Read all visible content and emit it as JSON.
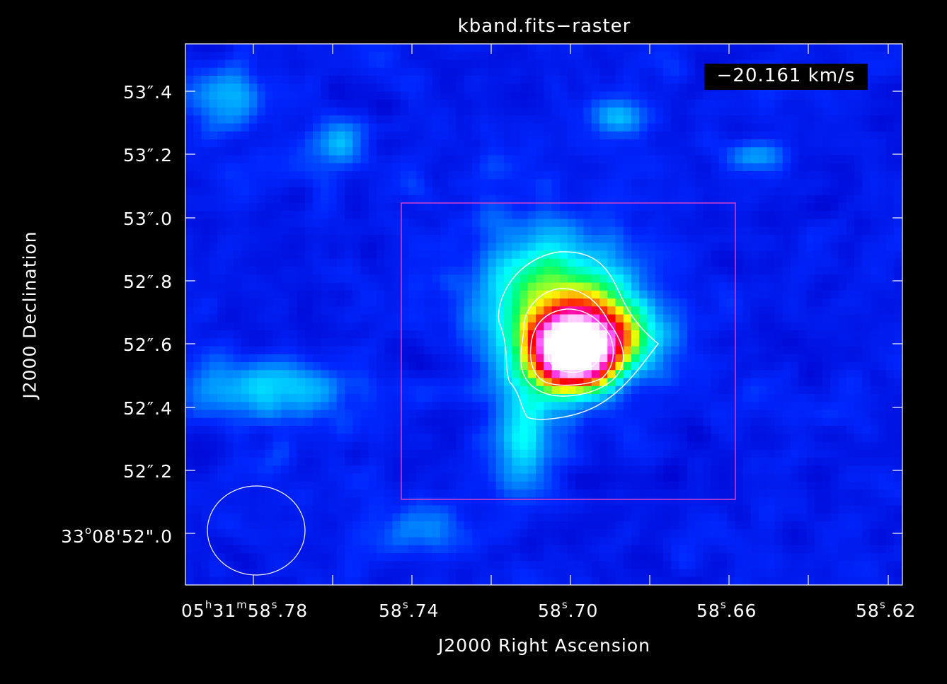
{
  "plot": {
    "title": "kband.fits−raster",
    "velocity_label": "−20.161 km/s",
    "x_axis_label": "J2000 Right Ascension",
    "y_axis_label": "J2000 Declination"
  },
  "dec_ticks": [
    {
      "text": "33°08’52″.0",
      "deg": "33",
      "rest": "08'52\".0"
    },
    {
      "text": "52\".2"
    },
    {
      "text": "52\".4"
    },
    {
      "text": "52\".6"
    },
    {
      "text": "52\".8"
    },
    {
      "text": "53\".0"
    },
    {
      "text": "53\".2"
    },
    {
      "text": "53\".4"
    }
  ],
  "ra_ticks": [
    {
      "h": "05",
      "m": "31",
      "s": "58",
      "frac": ".78"
    },
    {
      "s": "58",
      "frac": ".74"
    },
    {
      "s": "58",
      "frac": ".70"
    },
    {
      "s": "58",
      "frac": ".66"
    },
    {
      "s": "58",
      "frac": ".62"
    }
  ],
  "colors": {
    "background": "#000000",
    "frame": "#ffffff",
    "region_box": "#d040d0",
    "contours": "#ffffff",
    "colormap": [
      "#00003c",
      "#0000c8",
      "#0028ff",
      "#0096ff",
      "#00ffff",
      "#00ff64",
      "#ffff00",
      "#ff8000",
      "#ff0000",
      "#ff0096",
      "#ff50ff",
      "#ffc8ff",
      "#ffffff"
    ]
  },
  "icons": {
    "beam": "ellipse"
  }
}
